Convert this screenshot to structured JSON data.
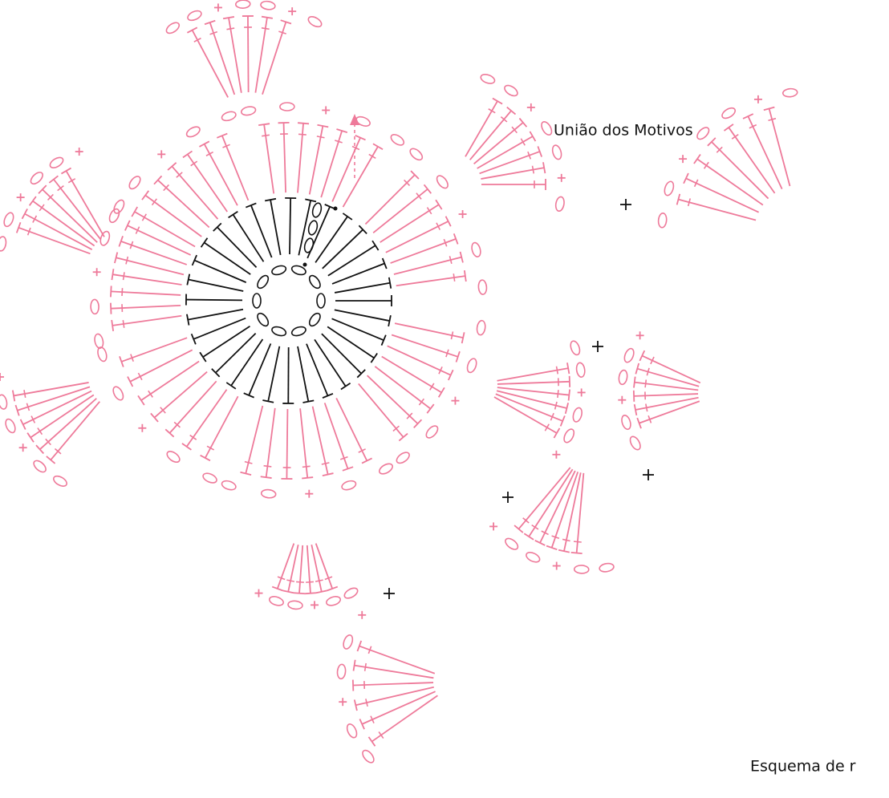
{
  "labels": {
    "join": "União dos Motivos",
    "caption": "Esquema de r"
  }
}
